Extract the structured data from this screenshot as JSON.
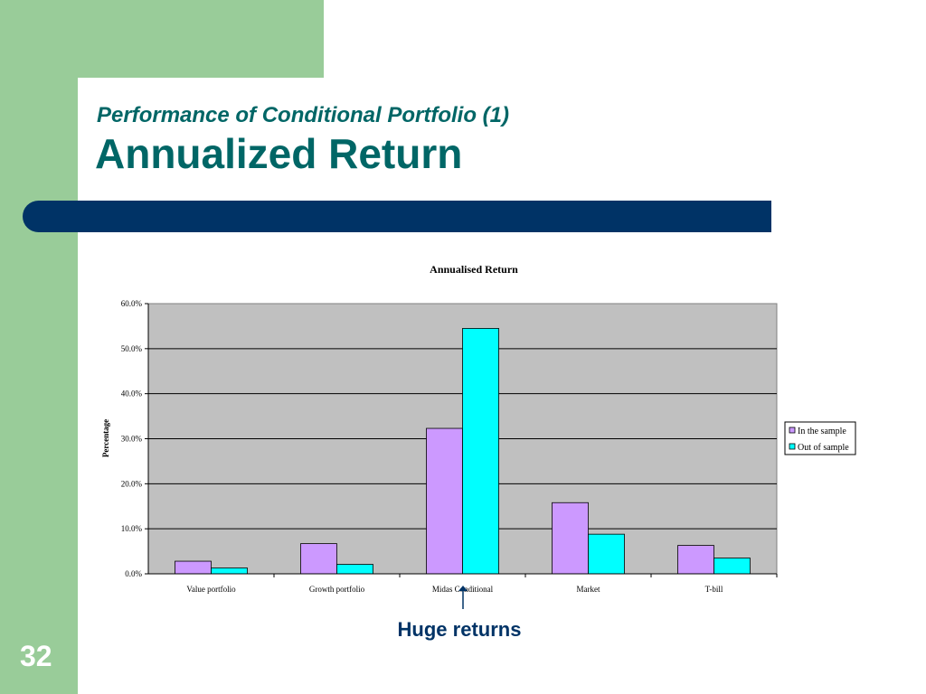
{
  "slide": {
    "subtitle": "Performance of Conditional Portfolio (1)",
    "title": "Annualized Return",
    "page_number": "32",
    "annotation": "Huge returns"
  },
  "colors": {
    "band_green": "#99cc99",
    "title_teal": "#006666",
    "bar_navy": "#003366",
    "plot_bg": "#c0c0c0",
    "series_in": "#cc99ff",
    "series_out": "#00ffff"
  },
  "chart_data": {
    "type": "bar",
    "title": "Annualised Return",
    "xlabel": "",
    "ylabel": "Percentage",
    "categories": [
      "Value portfolio",
      "Growth portfolio",
      "Midas Conditional",
      "Market",
      "T-bill"
    ],
    "series": [
      {
        "name": "In the sample",
        "color": "#cc99ff",
        "values": [
          2.8,
          6.7,
          32.3,
          15.8,
          6.3
        ]
      },
      {
        "name": "Out of sample",
        "color": "#00ffff",
        "values": [
          1.3,
          2.1,
          54.5,
          8.8,
          3.5
        ]
      }
    ],
    "ylim": [
      0,
      60
    ],
    "yticks": [
      "0.0%",
      "10.0%",
      "20.0%",
      "30.0%",
      "40.0%",
      "50.0%",
      "60.0%"
    ],
    "grid": true,
    "legend_position": "right"
  }
}
